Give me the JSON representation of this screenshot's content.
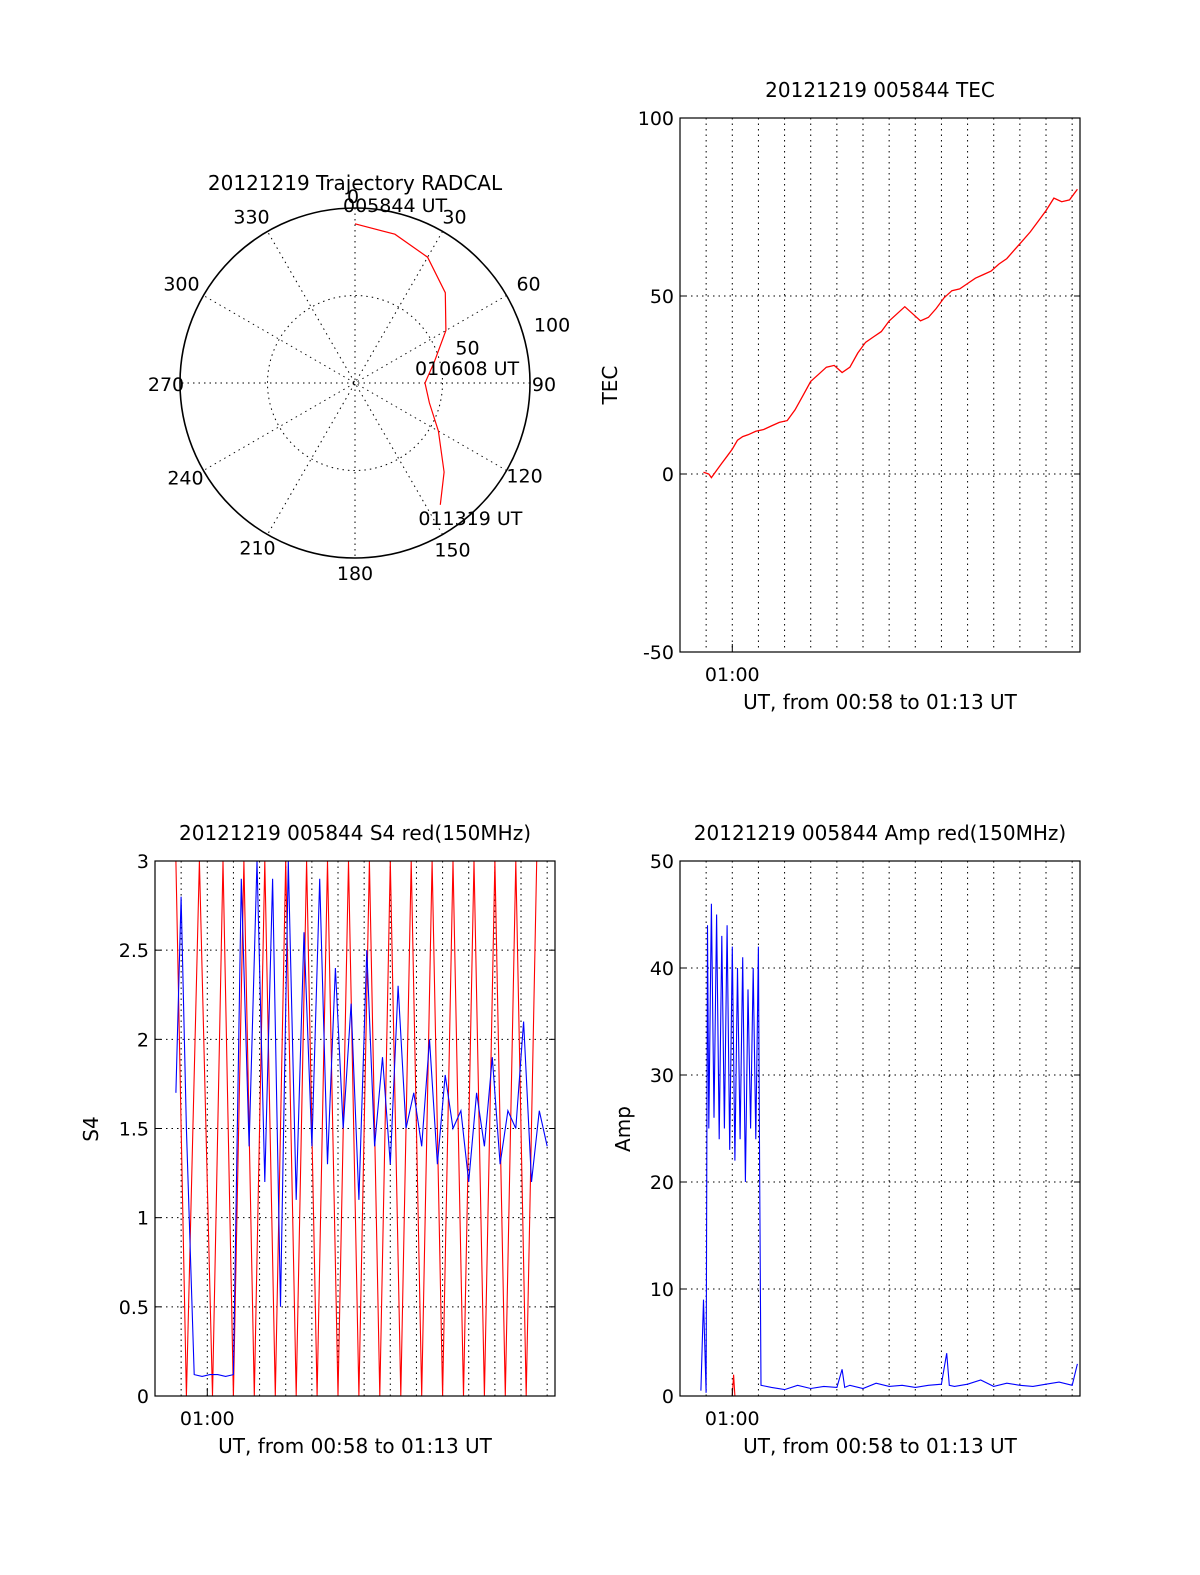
{
  "chart_data": [
    {
      "type": "polar",
      "title": "20121219 Trajectory RADCAL",
      "angle_labels": [
        "0",
        "30",
        "60",
        "90",
        "120",
        "150",
        "180",
        "210",
        "240",
        "270",
        "300",
        "330"
      ],
      "radius_labels": [
        "50",
        "100"
      ],
      "rlim": [
        0,
        100
      ],
      "grid": true,
      "trajectory": {
        "color": "#ff0000",
        "points": [
          {
            "azimuth": 0.0,
            "r": 91.0
          },
          {
            "azimuth": 15.0,
            "r": 88.0
          },
          {
            "azimuth": 30.0,
            "r": 83.0
          },
          {
            "azimuth": 45.0,
            "r": 73.0
          },
          {
            "azimuth": 60.0,
            "r": 60.0
          },
          {
            "azimuth": 75.0,
            "r": 47.0
          },
          {
            "azimuth": 90.0,
            "r": 40.0
          },
          {
            "azimuth": 105.0,
            "r": 44.0
          },
          {
            "azimuth": 120.0,
            "r": 55.0
          },
          {
            "azimuth": 135.0,
            "r": 72.0
          },
          {
            "azimuth": 145.0,
            "r": 85.0
          }
        ],
        "annotations": [
          {
            "text": "005844 UT",
            "azimuth": 0,
            "r": 91
          },
          {
            "text": "010608 UT",
            "azimuth": 90,
            "r": 40
          },
          {
            "text": "011319 UT",
            "azimuth": 145,
            "r": 85
          }
        ]
      }
    },
    {
      "type": "line",
      "title": "20121219 005844 TEC",
      "xlabel": "UT, from 00:58 to 01:13 UT",
      "ylabel": "TEC",
      "xlim": [
        58.0,
        73.3
      ],
      "ylim": [
        -50,
        100
      ],
      "x_ticks": [
        {
          "value": 60,
          "label": "01:00"
        }
      ],
      "y_ticks": [
        -50,
        0,
        50,
        100
      ],
      "vgrid": [
        59.0,
        60.0,
        61.0,
        62.0,
        63.0,
        64.0,
        65.0,
        66.0,
        67.0,
        68.0,
        69.0,
        70.0,
        71.0,
        72.0,
        73.0
      ],
      "hgrid": [
        0,
        50
      ],
      "series": [
        {
          "color": "#ff0000",
          "x": [
            58.9,
            59.1,
            59.2,
            59.4,
            59.6,
            59.8,
            60.0,
            60.2,
            60.4,
            60.6,
            60.9,
            61.2,
            61.5,
            61.8,
            62.1,
            62.4,
            62.7,
            63.0,
            63.3,
            63.6,
            63.9,
            64.2,
            64.5,
            64.8,
            65.1,
            65.4,
            65.7,
            66.0,
            66.3,
            66.6,
            66.9,
            67.2,
            67.5,
            67.8,
            68.1,
            68.4,
            68.7,
            69.0,
            69.3,
            69.6,
            69.9,
            70.2,
            70.5,
            70.8,
            71.1,
            71.4,
            71.7,
            72.0,
            72.3,
            72.6,
            72.9,
            73.2
          ],
          "y": [
            0.5,
            0.0,
            -1.0,
            1.0,
            3.0,
            5.0,
            7.0,
            9.5,
            10.5,
            11.0,
            12.0,
            12.5,
            13.5,
            14.5,
            15.0,
            18.0,
            22.0,
            26.0,
            28.0,
            30.0,
            30.5,
            28.5,
            30.0,
            34.0,
            37.0,
            38.5,
            40.0,
            43.0,
            45.0,
            47.0,
            45.0,
            43.0,
            44.0,
            46.5,
            49.5,
            51.5,
            52.0,
            53.5,
            55.0,
            56.0,
            57.0,
            59.0,
            60.5,
            63.0,
            65.5,
            68.0,
            71.0,
            74.0,
            77.5,
            76.5,
            77.0,
            80.0
          ]
        }
      ]
    },
    {
      "type": "line",
      "title": "20121219 005844 S4 red(150MHz)",
      "xlabel": "UT, from 00:58 to 01:13 UT",
      "ylabel": "S4",
      "xlim": [
        58.0,
        73.3
      ],
      "ylim": [
        0,
        3
      ],
      "x_ticks": [
        {
          "value": 60,
          "label": "01:00"
        }
      ],
      "y_ticks": [
        0,
        0.5,
        1,
        1.5,
        2,
        2.5,
        3
      ],
      "vgrid": [
        59.0,
        60.0,
        61.0,
        62.0,
        63.0,
        64.0,
        65.0,
        66.0,
        67.0,
        68.0,
        69.0,
        70.0,
        71.0,
        72.0,
        73.0
      ],
      "hgrid": [
        0.5,
        1,
        1.5,
        2,
        2.5
      ],
      "series": [
        {
          "color": "#ff0000",
          "x": [
            58.8,
            59.2,
            59.7,
            60.2,
            60.6,
            61.0,
            61.4,
            61.8,
            62.2,
            62.6,
            63.0,
            63.4,
            63.8,
            64.2,
            64.6,
            65.0,
            65.4,
            65.8,
            66.2,
            66.6,
            67.0,
            67.4,
            67.8,
            68.2,
            68.6,
            69.0,
            69.4,
            69.8,
            70.2,
            70.6,
            71.0,
            71.4,
            71.8,
            72.2,
            72.6
          ],
          "y": [
            3.0,
            0.0,
            3.0,
            0.0,
            3.0,
            0.0,
            3.0,
            0.0,
            3.0,
            0.0,
            3.0,
            0.0,
            3.0,
            0.0,
            3.0,
            0.0,
            3.0,
            0.0,
            3.0,
            0.0,
            3.0,
            0.0,
            3.0,
            0.0,
            3.0,
            0.0,
            3.0,
            0.0,
            3.0,
            0.0,
            3.0,
            0.0,
            3.0,
            0.0,
            3.0
          ]
        },
        {
          "color": "#0000ff",
          "x": [
            58.8,
            59.0,
            59.2,
            59.5,
            59.8,
            60.1,
            60.4,
            60.7,
            61.0,
            61.3,
            61.6,
            61.9,
            62.2,
            62.5,
            62.8,
            63.1,
            63.4,
            63.7,
            64.0,
            64.3,
            64.6,
            64.9,
            65.2,
            65.5,
            65.8,
            66.1,
            66.4,
            66.7,
            67.0,
            67.3,
            67.6,
            67.9,
            68.2,
            68.5,
            68.8,
            69.1,
            69.4,
            69.7,
            70.0,
            70.3,
            70.6,
            70.9,
            71.2,
            71.5,
            71.8,
            72.1,
            72.4,
            72.7,
            73.0
          ],
          "y": [
            1.7,
            2.8,
            1.5,
            0.12,
            0.11,
            0.12,
            0.12,
            0.11,
            0.12,
            2.9,
            1.4,
            3.0,
            1.2,
            2.9,
            0.5,
            3.0,
            1.1,
            2.6,
            1.4,
            2.9,
            1.3,
            2.4,
            1.5,
            2.2,
            1.1,
            2.5,
            1.4,
            1.9,
            1.3,
            2.3,
            1.5,
            1.7,
            1.4,
            2.0,
            1.3,
            1.8,
            1.5,
            1.6,
            1.2,
            1.7,
            1.4,
            1.9,
            1.3,
            1.6,
            1.5,
            2.1,
            1.2,
            1.6,
            1.4
          ]
        }
      ]
    },
    {
      "type": "line",
      "title": "20121219 005844 Amp red(150MHz)",
      "xlabel": "UT, from 00:58 to 01:13 UT",
      "ylabel": "Amp",
      "xlim": [
        58.0,
        73.3
      ],
      "ylim": [
        0,
        50
      ],
      "x_ticks": [
        {
          "value": 60,
          "label": "01:00"
        }
      ],
      "y_ticks": [
        0,
        10,
        20,
        30,
        40,
        50
      ],
      "vgrid": [
        59.0,
        60.0,
        61.0,
        62.0,
        63.0,
        64.0,
        65.0,
        66.0,
        67.0,
        68.0,
        69.0,
        70.0,
        71.0,
        72.0,
        73.0
      ],
      "hgrid": [
        10,
        20,
        30,
        40
      ],
      "series": [
        {
          "color": "#0000ff",
          "x": [
            58.8,
            58.9,
            59.0,
            59.05,
            59.1,
            59.2,
            59.3,
            59.4,
            59.5,
            59.6,
            59.7,
            59.8,
            59.9,
            60.0,
            60.1,
            60.2,
            60.3,
            60.4,
            60.5,
            60.6,
            60.7,
            60.8,
            60.9,
            61.0,
            61.05,
            61.1,
            61.5,
            62.0,
            62.5,
            63.0,
            63.5,
            64.0,
            64.2,
            64.3,
            64.5,
            65.0,
            65.5,
            66.0,
            66.5,
            67.0,
            67.5,
            68.0,
            68.2,
            68.3,
            68.5,
            69.0,
            69.5,
            70.0,
            70.5,
            71.0,
            71.5,
            72.0,
            72.5,
            73.0,
            73.2
          ],
          "y": [
            0.5,
            9.0,
            0.3,
            44.0,
            25.0,
            46.0,
            26.0,
            45.0,
            24.0,
            43.0,
            25.0,
            44.0,
            23.0,
            42.0,
            22.0,
            40.0,
            24.0,
            41.0,
            20.0,
            38.0,
            25.0,
            40.0,
            24.0,
            42.0,
            20.0,
            1.0,
            0.8,
            0.6,
            1.0,
            0.7,
            0.9,
            0.8,
            2.5,
            0.8,
            1.0,
            0.7,
            1.2,
            0.9,
            1.0,
            0.8,
            1.0,
            1.1,
            4.0,
            1.0,
            0.9,
            1.1,
            1.5,
            0.9,
            1.2,
            1.0,
            0.9,
            1.1,
            1.3,
            1.0,
            3.0
          ]
        },
        {
          "color": "#ff0000",
          "x": [
            59.0,
            59.5,
            59.8,
            60.0,
            60.05,
            60.1,
            60.5,
            61.0
          ],
          "y": [
            0.0,
            0.0,
            0.0,
            0.0,
            2.0,
            0.0,
            0.0,
            0.0
          ]
        }
      ]
    }
  ]
}
